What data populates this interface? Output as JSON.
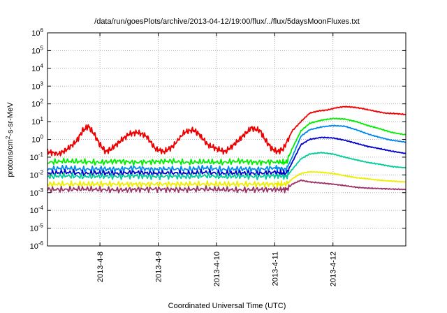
{
  "chart_data": {
    "type": "line",
    "title": "/data/run/goesPlots/archive/2013-04-12/19:00/flux/../flux/5daysMoonFluxes.txt",
    "xlabel": "Coordinated Universal Time (UTC)",
    "ylabel_parts": {
      "base": "protons/cm",
      "sup": "2",
      "rest": "-s-sr-MeV"
    },
    "x_range_days": [
      -0.9,
      5.25
    ],
    "x_ticks": [
      {
        "day": 0,
        "label": "2013-4-8"
      },
      {
        "day": 1,
        "label": "2013-4-9"
      },
      {
        "day": 2,
        "label": "2013-4-10"
      },
      {
        "day": 3,
        "label": "2013-4-11"
      },
      {
        "day": 4,
        "label": "2013-4-12"
      }
    ],
    "y_scale": "log",
    "y_ticks": [
      {
        "exp": 6,
        "base": "10",
        "sup": "6"
      },
      {
        "exp": 5,
        "base": "10",
        "sup": "5"
      },
      {
        "exp": 4,
        "base": "10",
        "sup": "4"
      },
      {
        "exp": 3,
        "base": "10",
        "sup": "3"
      },
      {
        "exp": 2,
        "base": "10",
        "sup": "2"
      },
      {
        "exp": 1,
        "base": "10",
        "sup": "1"
      },
      {
        "exp": 0,
        "base": "10",
        "sup": "0"
      },
      {
        "exp": -1,
        "base": "10",
        "sup": "-1"
      },
      {
        "exp": -2,
        "base": "10",
        "sup": "-2"
      },
      {
        "exp": -3,
        "base": "10",
        "sup": "-3"
      },
      {
        "exp": -4,
        "base": "10",
        "sup": "-4"
      },
      {
        "exp": -5,
        "base": "10",
        "sup": "-5"
      },
      {
        "exp": -6,
        "base": "10",
        "sup": "-6"
      }
    ],
    "grid": true,
    "series": [
      {
        "color": "#ee0000",
        "x": [
          -0.9,
          -0.7,
          -0.55,
          -0.4,
          -0.3,
          -0.2,
          -0.1,
          0.0,
          0.1,
          0.2,
          0.35,
          0.5,
          0.65,
          0.8,
          0.95,
          1.1,
          1.25,
          1.45,
          1.6,
          1.7,
          1.85,
          2.0,
          2.15,
          2.3,
          2.45,
          2.6,
          2.75,
          2.85,
          2.95,
          3.05,
          3.15,
          3.3,
          3.45,
          3.6,
          3.75,
          3.9,
          4.05,
          4.2,
          4.35,
          4.5,
          4.7,
          4.9,
          5.1,
          5.25
        ],
        "y": [
          0.2,
          0.15,
          0.3,
          0.8,
          3.0,
          5.5,
          2.0,
          0.5,
          0.2,
          0.3,
          0.8,
          2.0,
          2.5,
          1.5,
          0.3,
          0.2,
          0.4,
          2.5,
          3.5,
          2.0,
          0.5,
          0.3,
          0.2,
          0.5,
          1.5,
          4.5,
          3.0,
          0.8,
          0.3,
          0.2,
          0.3,
          3.0,
          10.0,
          30.0,
          40.0,
          45.0,
          60.0,
          70.0,
          65.0,
          55.0,
          40.0,
          30.0,
          28.0,
          25.0
        ]
      },
      {
        "color": "#00ee00",
        "x": [
          -0.9,
          -0.6,
          -0.3,
          0.0,
          0.3,
          0.6,
          0.9,
          1.2,
          1.5,
          1.8,
          2.1,
          2.4,
          2.7,
          3.0,
          3.2,
          3.3,
          3.45,
          3.6,
          3.8,
          4.0,
          4.2,
          4.4,
          4.6,
          4.8,
          5.0,
          5.25
        ],
        "y": [
          0.05,
          0.06,
          0.055,
          0.05,
          0.06,
          0.05,
          0.055,
          0.06,
          0.05,
          0.055,
          0.05,
          0.06,
          0.05,
          0.055,
          0.05,
          0.3,
          3.0,
          8.0,
          12.0,
          15.0,
          14.0,
          10.0,
          6.0,
          4.0,
          2.5,
          1.8
        ]
      },
      {
        "color": "#0088ee",
        "x": [
          -0.9,
          -0.6,
          -0.3,
          0.0,
          0.3,
          0.6,
          0.9,
          1.2,
          1.5,
          1.8,
          2.1,
          2.4,
          2.7,
          3.0,
          3.2,
          3.3,
          3.45,
          3.6,
          3.8,
          4.0,
          4.2,
          4.4,
          4.6,
          4.8,
          5.0,
          5.25
        ],
        "y": [
          0.02,
          0.025,
          0.02,
          0.022,
          0.02,
          0.025,
          0.02,
          0.022,
          0.02,
          0.025,
          0.02,
          0.022,
          0.02,
          0.025,
          0.02,
          0.1,
          1.5,
          3.5,
          5.0,
          6.0,
          5.5,
          3.5,
          2.0,
          1.3,
          0.9,
          0.7
        ]
      },
      {
        "color": "#0000cc",
        "x": [
          -0.9,
          -0.6,
          -0.3,
          0.0,
          0.3,
          0.6,
          0.9,
          1.2,
          1.5,
          1.8,
          2.1,
          2.4,
          2.7,
          3.0,
          3.2,
          3.3,
          3.45,
          3.6,
          3.8,
          4.0,
          4.2,
          4.4,
          4.6,
          4.8,
          5.0,
          5.25
        ],
        "y": [
          0.012,
          0.014,
          0.012,
          0.013,
          0.012,
          0.014,
          0.012,
          0.013,
          0.012,
          0.014,
          0.012,
          0.013,
          0.012,
          0.014,
          0.012,
          0.05,
          0.5,
          1.0,
          1.3,
          1.2,
          0.9,
          0.6,
          0.4,
          0.3,
          0.22,
          0.16
        ]
      },
      {
        "color": "#00cc99",
        "x": [
          -0.9,
          -0.6,
          -0.3,
          0.0,
          0.3,
          0.6,
          0.9,
          1.2,
          1.5,
          1.8,
          2.1,
          2.4,
          2.7,
          3.0,
          3.2,
          3.3,
          3.45,
          3.6,
          3.8,
          4.0,
          4.2,
          4.4,
          4.6,
          4.8,
          5.0,
          5.25
        ],
        "y": [
          0.008,
          0.009,
          0.008,
          0.0085,
          0.008,
          0.009,
          0.008,
          0.0085,
          0.008,
          0.009,
          0.008,
          0.0085,
          0.008,
          0.009,
          0.008,
          0.02,
          0.08,
          0.15,
          0.18,
          0.15,
          0.1,
          0.07,
          0.05,
          0.04,
          0.03,
          0.025
        ]
      },
      {
        "color": "#eeee00",
        "x": [
          -0.9,
          -0.6,
          -0.3,
          0.0,
          0.3,
          0.6,
          0.9,
          1.2,
          1.5,
          1.8,
          2.1,
          2.4,
          2.7,
          3.0,
          3.2,
          3.3,
          3.45,
          3.6,
          3.8,
          4.0,
          4.2,
          4.4,
          4.6,
          4.8,
          5.0,
          5.25
        ],
        "y": [
          0.003,
          0.003,
          0.003,
          0.003,
          0.003,
          0.003,
          0.003,
          0.003,
          0.003,
          0.003,
          0.003,
          0.003,
          0.003,
          0.003,
          0.003,
          0.006,
          0.012,
          0.015,
          0.014,
          0.012,
          0.009,
          0.007,
          0.006,
          0.005,
          0.0045,
          0.004
        ]
      },
      {
        "color": "#993366",
        "x": [
          -0.9,
          -0.6,
          -0.3,
          0.0,
          0.3,
          0.6,
          0.9,
          1.2,
          1.5,
          1.8,
          2.1,
          2.4,
          2.7,
          3.0,
          3.2,
          3.3,
          3.45,
          3.6,
          3.8,
          4.0,
          4.2,
          4.4,
          4.6,
          4.8,
          5.0,
          5.25
        ],
        "y": [
          0.0015,
          0.0015,
          0.0016,
          0.0015,
          0.0014,
          0.0015,
          0.0016,
          0.0015,
          0.0015,
          0.0016,
          0.0015,
          0.0014,
          0.0015,
          0.0015,
          0.0015,
          0.003,
          0.005,
          0.004,
          0.0035,
          0.003,
          0.0025,
          0.002,
          0.0018,
          0.0017,
          0.0016,
          0.0015
        ]
      }
    ]
  }
}
